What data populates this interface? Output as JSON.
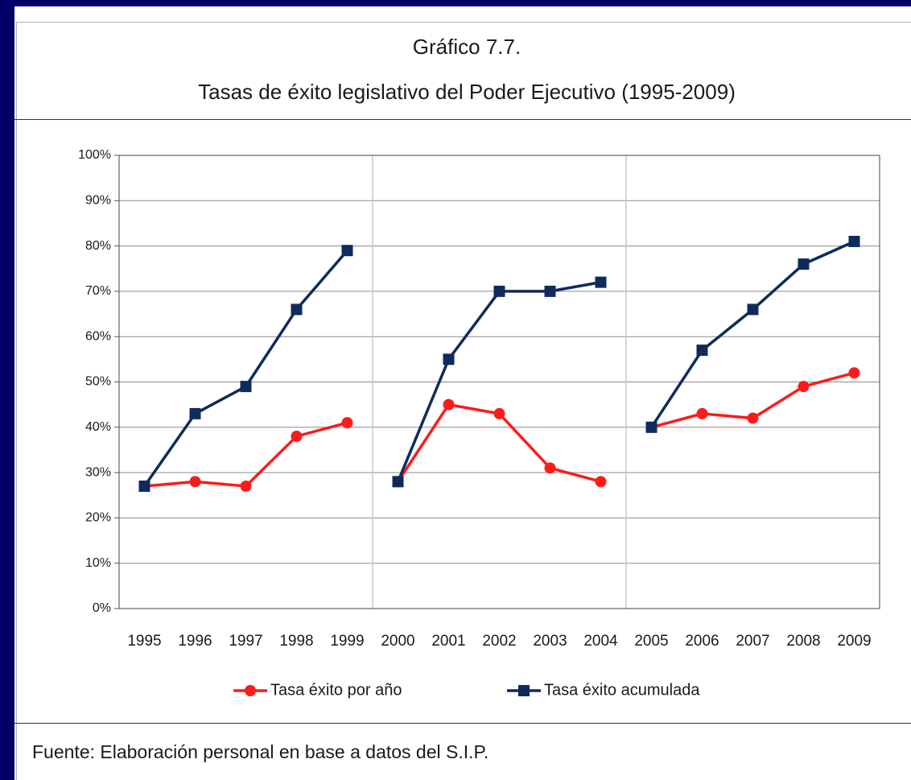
{
  "chart_data": {
    "type": "line",
    "title": "Gráfico 7.7.",
    "subtitle": "Tasas de éxito legislativo del Poder Ejecutivo (1995-2009)",
    "categories": [
      "1995",
      "1996",
      "1997",
      "1998",
      "1999",
      "2000",
      "2001",
      "2002",
      "2003",
      "2004",
      "2005",
      "2006",
      "2007",
      "2008",
      "2009"
    ],
    "series": [
      {
        "name": "Tasa éxito por año",
        "color": "#ff1a1a",
        "marker": "circle",
        "values": [
          27,
          28,
          27,
          38,
          41,
          28,
          45,
          43,
          31,
          28,
          40,
          43,
          42,
          49,
          52
        ]
      },
      {
        "name": "Tasa éxito acumulada",
        "color": "#0f2b5b",
        "marker": "square",
        "values": [
          27,
          43,
          49,
          66,
          79,
          28,
          55,
          70,
          70,
          72,
          40,
          57,
          66,
          76,
          81
        ]
      }
    ],
    "ylim": [
      0,
      100
    ],
    "yticks": [
      {
        "value": 0,
        "label": "0%"
      },
      {
        "value": 10,
        "label": "10%"
      },
      {
        "value": 20,
        "label": "20%"
      },
      {
        "value": 30,
        "label": "30%"
      },
      {
        "value": 40,
        "label": "40%"
      },
      {
        "value": 50,
        "label": "50%"
      },
      {
        "value": 60,
        "label": "60%"
      },
      {
        "value": 70,
        "label": "70%"
      },
      {
        "value": 80,
        "label": "80%"
      },
      {
        "value": 90,
        "label": "90%"
      },
      {
        "value": 100,
        "label": "100%"
      }
    ],
    "grid": true,
    "vertical_lines_before": [
      "2000",
      "2005"
    ],
    "legend": "bottom"
  },
  "source": "Fuente: Elaboración personal en base a datos del S.I.P."
}
